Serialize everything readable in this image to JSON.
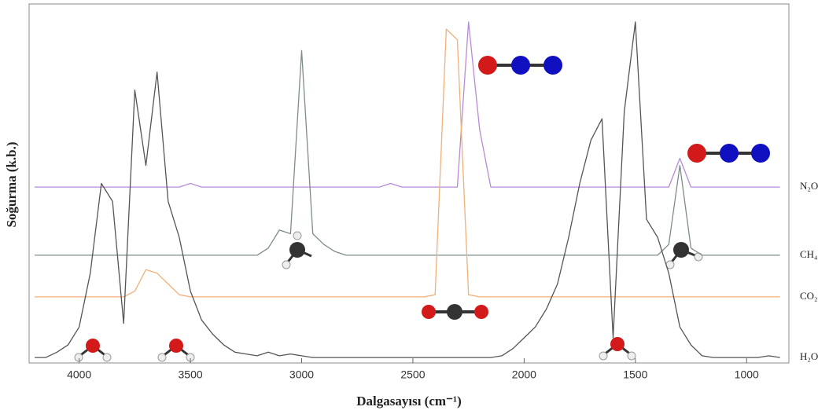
{
  "chart_data": {
    "type": "line",
    "xlabel": "Dalgasayısı (cm⁻¹)",
    "ylabel": "Soğurma (k.b.)",
    "xlim": [
      4225,
      810
    ],
    "ylim": [
      0,
      1
    ],
    "xticks": [
      4000,
      3500,
      3000,
      2500,
      2000,
      1500,
      1000
    ],
    "x": [
      4200,
      4150,
      4100,
      4050,
      4000,
      3950,
      3900,
      3850,
      3800,
      3750,
      3700,
      3650,
      3600,
      3550,
      3500,
      3450,
      3400,
      3350,
      3300,
      3250,
      3200,
      3150,
      3100,
      3050,
      3000,
      2950,
      2900,
      2850,
      2800,
      2750,
      2700,
      2650,
      2600,
      2550,
      2500,
      2450,
      2400,
      2350,
      2300,
      2250,
      2200,
      2150,
      2100,
      2050,
      2000,
      1950,
      1900,
      1850,
      1800,
      1750,
      1700,
      1650,
      1600,
      1550,
      1500,
      1450,
      1400,
      1350,
      1300,
      1250,
      1200,
      1150,
      1100,
      1050,
      1000,
      950,
      900,
      850
    ],
    "series": [
      {
        "name": "N₂O",
        "color": "#b98ad6",
        "values": [
          0.49,
          0.49,
          0.49,
          0.49,
          0.49,
          0.49,
          0.49,
          0.49,
          0.49,
          0.49,
          0.49,
          0.49,
          0.49,
          0.49,
          0.5,
          0.49,
          0.49,
          0.49,
          0.49,
          0.49,
          0.49,
          0.49,
          0.49,
          0.49,
          0.49,
          0.49,
          0.49,
          0.49,
          0.49,
          0.49,
          0.49,
          0.49,
          0.5,
          0.49,
          0.49,
          0.49,
          0.49,
          0.49,
          0.49,
          0.95,
          0.65,
          0.49,
          0.49,
          0.49,
          0.49,
          0.49,
          0.49,
          0.49,
          0.49,
          0.49,
          0.49,
          0.49,
          0.49,
          0.49,
          0.49,
          0.49,
          0.49,
          0.49,
          0.57,
          0.49,
          0.49,
          0.49,
          0.49,
          0.49,
          0.49,
          0.49,
          0.49,
          0.49
        ]
      },
      {
        "name": "CH₄",
        "color": "#7f8c8c",
        "values": [
          0.3,
          0.3,
          0.3,
          0.3,
          0.3,
          0.3,
          0.3,
          0.3,
          0.3,
          0.3,
          0.3,
          0.3,
          0.3,
          0.3,
          0.3,
          0.3,
          0.3,
          0.3,
          0.3,
          0.3,
          0.3,
          0.32,
          0.37,
          0.36,
          0.87,
          0.36,
          0.33,
          0.31,
          0.3,
          0.3,
          0.3,
          0.3,
          0.3,
          0.3,
          0.3,
          0.3,
          0.3,
          0.3,
          0.3,
          0.3,
          0.3,
          0.3,
          0.3,
          0.3,
          0.3,
          0.3,
          0.3,
          0.3,
          0.3,
          0.3,
          0.3,
          0.3,
          0.3,
          0.3,
          0.3,
          0.3,
          0.3,
          0.33,
          0.55,
          0.32,
          0.3,
          0.3,
          0.3,
          0.3,
          0.3,
          0.3,
          0.3,
          0.3
        ]
      },
      {
        "name": "CO₂",
        "color": "#f0b07a",
        "values": [
          0.184,
          0.184,
          0.184,
          0.184,
          0.184,
          0.184,
          0.184,
          0.184,
          0.184,
          0.2,
          0.26,
          0.25,
          0.22,
          0.19,
          0.184,
          0.184,
          0.184,
          0.184,
          0.184,
          0.184,
          0.184,
          0.184,
          0.184,
          0.184,
          0.184,
          0.184,
          0.184,
          0.184,
          0.184,
          0.184,
          0.184,
          0.184,
          0.184,
          0.184,
          0.184,
          0.184,
          0.19,
          0.93,
          0.9,
          0.19,
          0.184,
          0.184,
          0.184,
          0.184,
          0.184,
          0.184,
          0.184,
          0.184,
          0.184,
          0.184,
          0.184,
          0.184,
          0.184,
          0.184,
          0.184,
          0.184,
          0.184,
          0.184,
          0.184,
          0.184,
          0.184,
          0.184,
          0.184,
          0.184,
          0.184,
          0.184,
          0.184,
          0.184
        ]
      },
      {
        "name": "H₂O",
        "color": "#555555",
        "values": [
          0.015,
          0.015,
          0.03,
          0.05,
          0.1,
          0.25,
          0.5,
          0.45,
          0.11,
          0.76,
          0.55,
          0.81,
          0.45,
          0.35,
          0.2,
          0.12,
          0.08,
          0.05,
          0.03,
          0.025,
          0.02,
          0.03,
          0.02,
          0.025,
          0.02,
          0.015,
          0.015,
          0.015,
          0.015,
          0.015,
          0.015,
          0.015,
          0.015,
          0.015,
          0.015,
          0.015,
          0.015,
          0.015,
          0.015,
          0.015,
          0.015,
          0.015,
          0.02,
          0.04,
          0.07,
          0.1,
          0.15,
          0.22,
          0.35,
          0.5,
          0.62,
          0.68,
          0.07,
          0.7,
          0.95,
          0.4,
          0.35,
          0.25,
          0.1,
          0.05,
          0.02,
          0.015,
          0.015,
          0.015,
          0.015,
          0.015,
          0.02,
          0.015
        ]
      }
    ]
  }
}
